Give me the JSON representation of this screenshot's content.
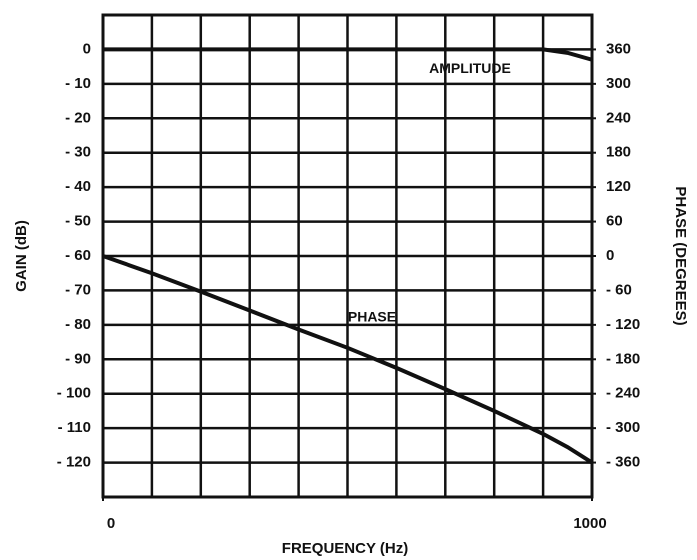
{
  "chart_data": {
    "type": "line",
    "x_label": "FREQUENCY (Hz)",
    "y_label": "GAIN (dB)",
    "y2_label": "PHASE (DEGREES)",
    "x": [
      0,
      100,
      200,
      300,
      400,
      500,
      600,
      700,
      800,
      900,
      950,
      1000
    ],
    "series": [
      {
        "name": "AMPLITUDE",
        "color": "#111111",
        "axis": "y",
        "values": [
          0,
          0,
          0,
          0,
          0,
          0,
          0,
          0,
          0,
          0,
          -1,
          -3
        ]
      },
      {
        "name": "PHASE",
        "color": "#111111",
        "axis": "y2",
        "values": [
          0,
          -30,
          -62,
          -95,
          -128,
          -160,
          -195,
          -232,
          -270,
          -310,
          -333,
          -360
        ]
      }
    ],
    "xlim": [
      0,
      1000
    ],
    "xticks": [
      0,
      1000
    ],
    "ylim": [
      -130,
      10
    ],
    "yticks": [
      0,
      {
        "value": -10,
        "label": "- 10"
      },
      {
        "value": -20,
        "label": "- 20"
      },
      {
        "value": -30,
        "label": "- 30"
      },
      {
        "value": -40,
        "label": "- 40"
      },
      {
        "value": -50,
        "label": "- 50"
      },
      {
        "value": -60,
        "label": "- 60"
      },
      {
        "value": -70,
        "label": "- 70"
      },
      {
        "value": -80,
        "label": "- 80"
      },
      {
        "value": -90,
        "label": "- 90"
      },
      {
        "value": -100,
        "label": "- 100"
      },
      {
        "value": -110,
        "label": "- 110"
      },
      {
        "value": -120,
        "label": "- 120"
      }
    ],
    "y2lim": [
      -420,
      420
    ],
    "y2ticks": [
      360,
      300,
      240,
      180,
      120,
      60,
      0,
      {
        "value": -60,
        "label": "- 60"
      },
      {
        "value": -120,
        "label": "- 120"
      },
      {
        "value": -180,
        "label": "- 180"
      },
      {
        "value": -240,
        "label": "- 240"
      },
      {
        "value": -300,
        "label": "- 300"
      },
      {
        "value": -360,
        "label": "- 360"
      }
    ],
    "grid": true
  }
}
